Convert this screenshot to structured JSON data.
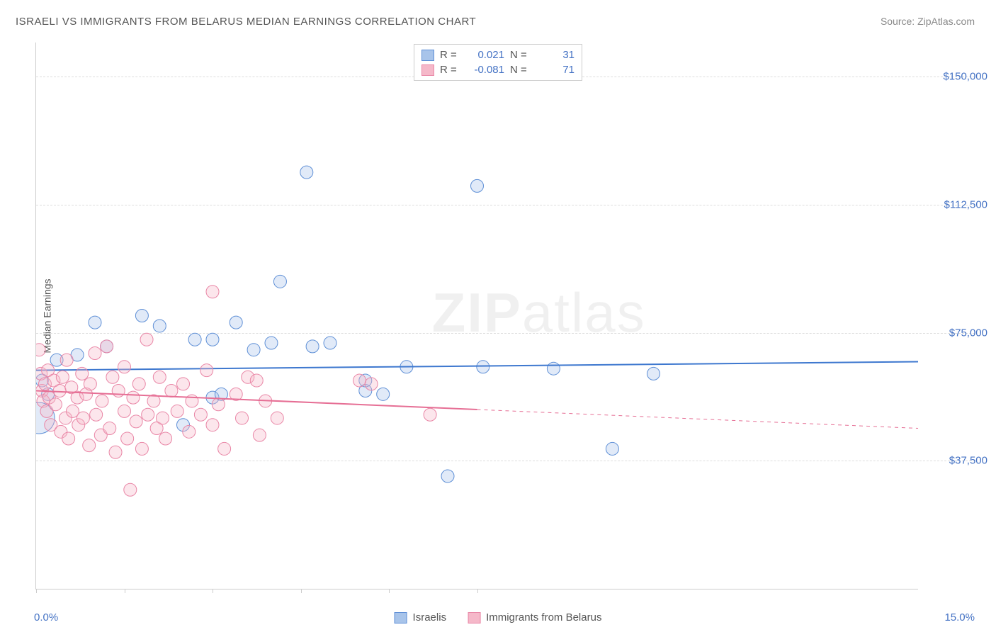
{
  "title": "ISRAELI VS IMMIGRANTS FROM BELARUS MEDIAN EARNINGS CORRELATION CHART",
  "source": "Source: ZipAtlas.com",
  "watermark": {
    "bold": "ZIP",
    "light": "atlas"
  },
  "ylabel": "Median Earnings",
  "chart": {
    "type": "scatter-correlation",
    "background_color": "#ffffff",
    "grid_color": "#dddddd",
    "axis_color": "#cccccc",
    "text_color": "#555555",
    "value_color": "#4472c4",
    "xlim": [
      0.0,
      15.0
    ],
    "ylim": [
      0,
      160000
    ],
    "xticks": [
      0.0,
      1.5,
      3.0,
      4.5,
      6.0,
      7.5
    ],
    "xlim_labels": {
      "min": "0.0%",
      "max": "15.0%"
    },
    "yticks": [
      {
        "v": 37500,
        "label": "$37,500"
      },
      {
        "v": 75000,
        "label": "$75,000"
      },
      {
        "v": 112500,
        "label": "$112,500"
      },
      {
        "v": 150000,
        "label": "$150,000"
      }
    ],
    "marker_radius": 9,
    "marker_fill_opacity": 0.35,
    "line_width": 2,
    "series": [
      {
        "key": "israelis",
        "label": "Israelis",
        "color_fill": "#a8c4ea",
        "color_stroke": "#5e8fd6",
        "line_color": "#3e78cf",
        "R": "0.021",
        "N": "31",
        "trend": {
          "y_at_xmin": 64000,
          "y_at_xmax": 66500,
          "data_xmax": 15.0
        },
        "points": [
          {
            "x": 0.05,
            "y": 50000,
            "r": 22
          },
          {
            "x": 0.1,
            "y": 61000
          },
          {
            "x": 0.2,
            "y": 57000
          },
          {
            "x": 0.35,
            "y": 67000
          },
          {
            "x": 0.7,
            "y": 68500
          },
          {
            "x": 1.0,
            "y": 78000
          },
          {
            "x": 1.2,
            "y": 71000
          },
          {
            "x": 1.8,
            "y": 80000
          },
          {
            "x": 2.1,
            "y": 77000
          },
          {
            "x": 2.5,
            "y": 48000
          },
          {
            "x": 2.7,
            "y": 73000
          },
          {
            "x": 3.0,
            "y": 56000
          },
          {
            "x": 3.0,
            "y": 73000
          },
          {
            "x": 3.15,
            "y": 57000
          },
          {
            "x": 3.4,
            "y": 78000
          },
          {
            "x": 3.7,
            "y": 70000
          },
          {
            "x": 4.0,
            "y": 72000
          },
          {
            "x": 4.15,
            "y": 90000
          },
          {
            "x": 4.6,
            "y": 122000
          },
          {
            "x": 4.7,
            "y": 71000
          },
          {
            "x": 5.0,
            "y": 72000
          },
          {
            "x": 5.6,
            "y": 58000
          },
          {
            "x": 5.6,
            "y": 61000
          },
          {
            "x": 5.9,
            "y": 57000
          },
          {
            "x": 6.3,
            "y": 65000
          },
          {
            "x": 7.0,
            "y": 33000
          },
          {
            "x": 7.5,
            "y": 118000
          },
          {
            "x": 7.6,
            "y": 65000
          },
          {
            "x": 8.8,
            "y": 64500
          },
          {
            "x": 9.8,
            "y": 41000
          },
          {
            "x": 10.5,
            "y": 63000
          }
        ]
      },
      {
        "key": "belarus",
        "label": "Immigrants from Belarus",
        "color_fill": "#f5b8c9",
        "color_stroke": "#e986a6",
        "line_color": "#e66f95",
        "R": "-0.081",
        "N": "71",
        "trend": {
          "y_at_xmin": 58000,
          "y_at_xmax": 47000,
          "data_xmax": 7.5
        },
        "points": [
          {
            "x": 0.05,
            "y": 70000
          },
          {
            "x": 0.08,
            "y": 63000
          },
          {
            "x": 0.1,
            "y": 58000
          },
          {
            "x": 0.12,
            "y": 55000
          },
          {
            "x": 0.15,
            "y": 60000
          },
          {
            "x": 0.18,
            "y": 52000
          },
          {
            "x": 0.2,
            "y": 64000
          },
          {
            "x": 0.22,
            "y": 56000
          },
          {
            "x": 0.25,
            "y": 48000
          },
          {
            "x": 0.3,
            "y": 61000
          },
          {
            "x": 0.33,
            "y": 54000
          },
          {
            "x": 0.4,
            "y": 58000
          },
          {
            "x": 0.42,
            "y": 46000
          },
          {
            "x": 0.45,
            "y": 62000
          },
          {
            "x": 0.5,
            "y": 50000
          },
          {
            "x": 0.52,
            "y": 67000
          },
          {
            "x": 0.55,
            "y": 44000
          },
          {
            "x": 0.6,
            "y": 59000
          },
          {
            "x": 0.62,
            "y": 52000
          },
          {
            "x": 0.7,
            "y": 56000
          },
          {
            "x": 0.72,
            "y": 48000
          },
          {
            "x": 0.78,
            "y": 63000
          },
          {
            "x": 0.8,
            "y": 50000
          },
          {
            "x": 0.85,
            "y": 57000
          },
          {
            "x": 0.9,
            "y": 42000
          },
          {
            "x": 0.92,
            "y": 60000
          },
          {
            "x": 1.0,
            "y": 69000
          },
          {
            "x": 1.02,
            "y": 51000
          },
          {
            "x": 1.1,
            "y": 45000
          },
          {
            "x": 1.12,
            "y": 55000
          },
          {
            "x": 1.2,
            "y": 71000
          },
          {
            "x": 1.25,
            "y": 47000
          },
          {
            "x": 1.3,
            "y": 62000
          },
          {
            "x": 1.35,
            "y": 40000
          },
          {
            "x": 1.4,
            "y": 58000
          },
          {
            "x": 1.5,
            "y": 52000
          },
          {
            "x": 1.5,
            "y": 65000
          },
          {
            "x": 1.55,
            "y": 44000
          },
          {
            "x": 1.6,
            "y": 29000
          },
          {
            "x": 1.65,
            "y": 56000
          },
          {
            "x": 1.7,
            "y": 49000
          },
          {
            "x": 1.75,
            "y": 60000
          },
          {
            "x": 1.8,
            "y": 41000
          },
          {
            "x": 1.88,
            "y": 73000
          },
          {
            "x": 1.9,
            "y": 51000
          },
          {
            "x": 2.0,
            "y": 55000
          },
          {
            "x": 2.05,
            "y": 47000
          },
          {
            "x": 2.1,
            "y": 62000
          },
          {
            "x": 2.15,
            "y": 50000
          },
          {
            "x": 2.2,
            "y": 44000
          },
          {
            "x": 2.3,
            "y": 58000
          },
          {
            "x": 2.4,
            "y": 52000
          },
          {
            "x": 2.5,
            "y": 60000
          },
          {
            "x": 2.6,
            "y": 46000
          },
          {
            "x": 2.65,
            "y": 55000
          },
          {
            "x": 2.8,
            "y": 51000
          },
          {
            "x": 2.9,
            "y": 64000
          },
          {
            "x": 3.0,
            "y": 48000
          },
          {
            "x": 3.0,
            "y": 87000
          },
          {
            "x": 3.1,
            "y": 54000
          },
          {
            "x": 3.2,
            "y": 41000
          },
          {
            "x": 3.4,
            "y": 57000
          },
          {
            "x": 3.5,
            "y": 50000
          },
          {
            "x": 3.6,
            "y": 62000
          },
          {
            "x": 3.75,
            "y": 61000
          },
          {
            "x": 3.8,
            "y": 45000
          },
          {
            "x": 3.9,
            "y": 55000
          },
          {
            "x": 4.1,
            "y": 50000
          },
          {
            "x": 5.5,
            "y": 61000
          },
          {
            "x": 5.7,
            "y": 60000
          },
          {
            "x": 6.7,
            "y": 51000
          }
        ]
      }
    ]
  },
  "legend_top": {
    "R_label": "R =",
    "N_label": "N ="
  }
}
